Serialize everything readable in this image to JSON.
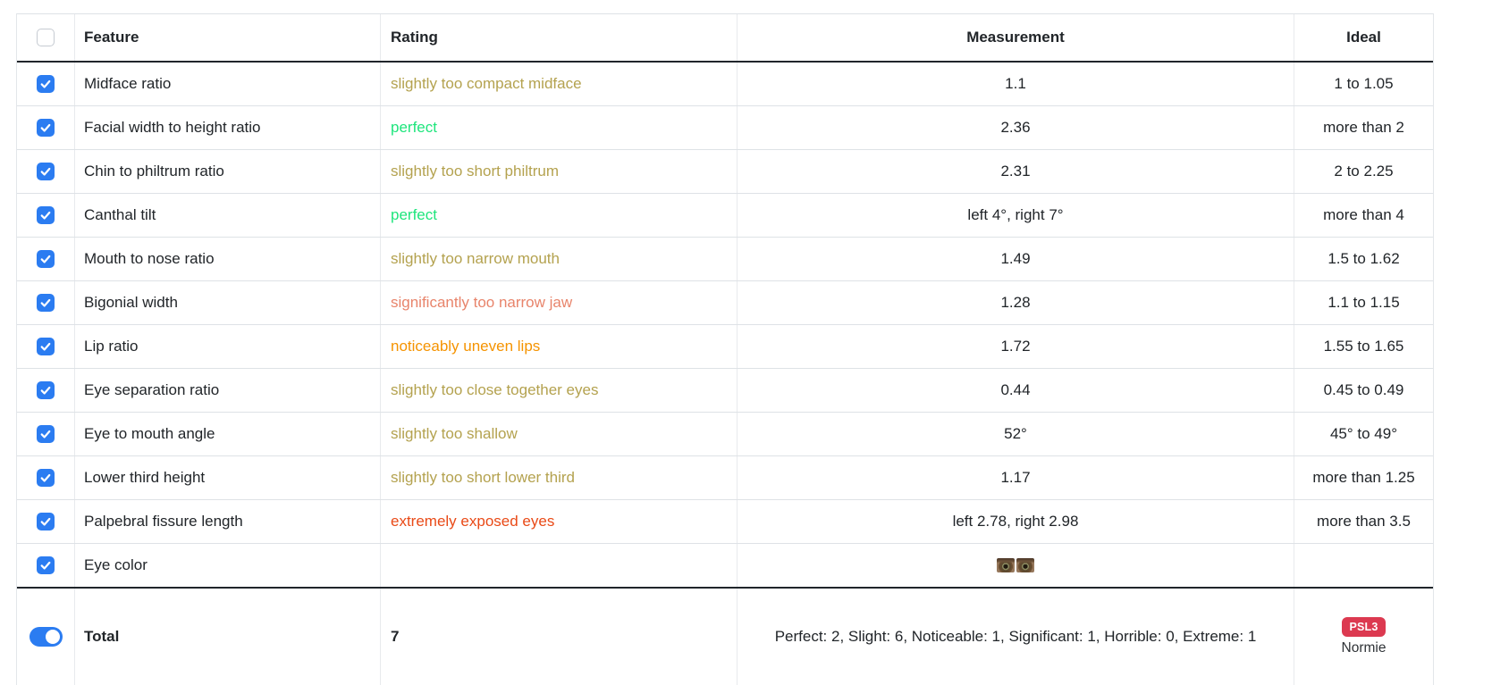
{
  "colors": {
    "perfect": "#1ee57c",
    "slight": "#b4a24f",
    "noticeable": "#f59300",
    "significant": "#e8846b",
    "extreme": "#e94a17",
    "checkbox_blue": "#2b7cf1",
    "badge_red": "#dc3950"
  },
  "table": {
    "headers": {
      "feature": "Feature",
      "rating": "Rating",
      "measurement": "Measurement",
      "ideal": "Ideal"
    },
    "rows": [
      {
        "feature": "Midface ratio",
        "rating": "slightly too compact midface",
        "level": "slight",
        "measurement": "1.1",
        "ideal": "1 to 1.05",
        "checked": true
      },
      {
        "feature": "Facial width to height ratio",
        "rating": "perfect",
        "level": "perfect",
        "measurement": "2.36",
        "ideal": "more than 2",
        "checked": true
      },
      {
        "feature": "Chin to philtrum ratio",
        "rating": "slightly too short philtrum",
        "level": "slight",
        "measurement": "2.31",
        "ideal": "2 to 2.25",
        "checked": true
      },
      {
        "feature": "Canthal tilt",
        "rating": "perfect",
        "level": "perfect",
        "measurement": "left 4°, right 7°",
        "ideal": "more than 4",
        "checked": true
      },
      {
        "feature": "Mouth to nose ratio",
        "rating": "slightly too narrow mouth",
        "level": "slight",
        "measurement": "1.49",
        "ideal": "1.5 to 1.62",
        "checked": true
      },
      {
        "feature": "Bigonial width",
        "rating": "significantly too narrow jaw",
        "level": "significant",
        "measurement": "1.28",
        "ideal": "1.1 to 1.15",
        "checked": true
      },
      {
        "feature": "Lip ratio",
        "rating": "noticeably uneven lips",
        "level": "noticeable",
        "measurement": "1.72",
        "ideal": "1.55 to 1.65",
        "checked": true
      },
      {
        "feature": "Eye separation ratio",
        "rating": "slightly too close together eyes",
        "level": "slight",
        "measurement": "0.44",
        "ideal": "0.45 to 0.49",
        "checked": true
      },
      {
        "feature": "Eye to mouth angle",
        "rating": "slightly too shallow",
        "level": "slight",
        "measurement": "52°",
        "ideal": "45° to 49°",
        "checked": true
      },
      {
        "feature": "Lower third height",
        "rating": "slightly too short lower third",
        "level": "slight",
        "measurement": "1.17",
        "ideal": "more than 1.25",
        "checked": true
      },
      {
        "feature": "Palpebral fissure length",
        "rating": "extremely exposed eyes",
        "level": "extreme",
        "measurement": "left 2.78, right 2.98",
        "ideal": "more than 3.5",
        "checked": true
      },
      {
        "feature": "Eye color",
        "rating": "",
        "level": "",
        "measurement_type": "eye_images",
        "eye_swatch_count": 2,
        "measurement": "",
        "ideal": "",
        "checked": true
      }
    ],
    "total": {
      "label": "Total",
      "score": "7",
      "summary": "Perfect: 2, Slight: 6, Noticeable: 1, Significant: 1, Horrible: 0, Extreme: 1",
      "badge": "PSL3",
      "tier": "Normie",
      "toggle_on": true
    }
  }
}
